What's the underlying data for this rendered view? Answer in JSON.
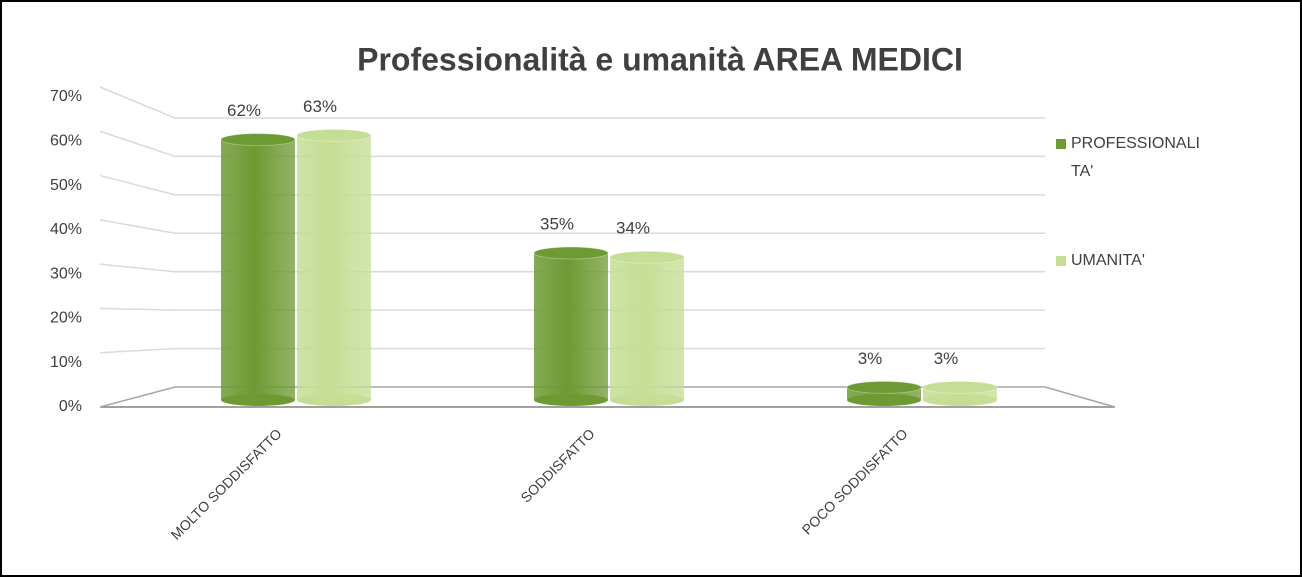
{
  "chart_data": {
    "type": "bar",
    "title": "Professionalità e umanità AREA MEDICI",
    "categories": [
      "MOLTO SODDISFATTO",
      "SODDISFATTO",
      "POCO SODDISFATTO"
    ],
    "series": [
      {
        "name": "PROFESSIONALITA'",
        "color": "#6e9a34",
        "values": [
          62,
          35,
          3
        ],
        "value_labels": [
          "62%",
          "35%",
          "3%"
        ]
      },
      {
        "name": "UMANITA'",
        "color": "#c5de96",
        "values": [
          63,
          34,
          3
        ],
        "value_labels": [
          "63%",
          "34%",
          "3%"
        ]
      }
    ],
    "ylim": [
      0,
      70
    ],
    "yticks": [
      {
        "value": 0,
        "label": "0%"
      },
      {
        "value": 10,
        "label": "10%"
      },
      {
        "value": 20,
        "label": "20%"
      },
      {
        "value": 30,
        "label": "30%"
      },
      {
        "value": 40,
        "label": "40%"
      },
      {
        "value": 50,
        "label": "50%"
      },
      {
        "value": 60,
        "label": "60%"
      },
      {
        "value": 70,
        "label": "70%"
      }
    ],
    "grid": true,
    "legend": "right"
  }
}
